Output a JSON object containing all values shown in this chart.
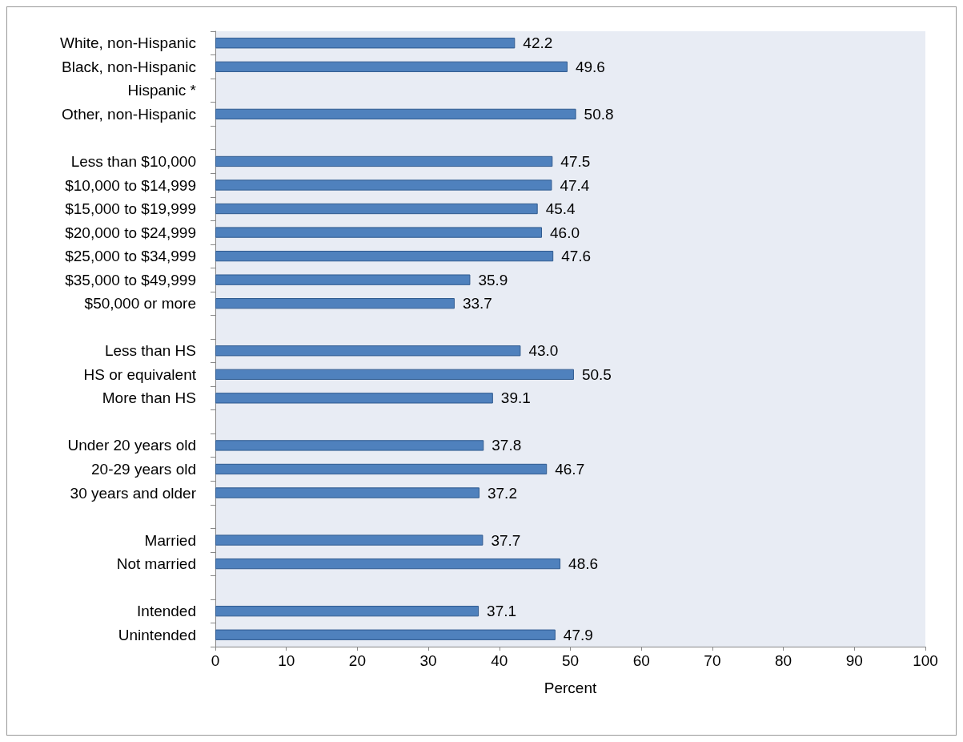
{
  "chart_data": {
    "type": "bar",
    "orientation": "horizontal",
    "xlabel": "Percent",
    "categories": [
      "White, non-Hispanic",
      "Black, non-Hispanic",
      "Hispanic *",
      "Other, non-Hispanic",
      null,
      "Less than $10,000",
      "$10,000 to $14,999",
      "$15,000 to $19,999",
      "$20,000 to $24,999",
      "$25,000 to $34,999",
      "$35,000 to $49,999",
      "$50,000 or more",
      null,
      "Less than HS",
      "HS or equivalent",
      "More than HS",
      null,
      "Under 20 years old",
      "20-29 years old",
      "30 years and older",
      null,
      "Married",
      "Not married",
      null,
      "Intended",
      "Unintended"
    ],
    "values": [
      42.2,
      49.6,
      null,
      50.8,
      null,
      47.5,
      47.4,
      45.4,
      46.0,
      47.6,
      35.9,
      33.7,
      null,
      43.0,
      50.5,
      39.1,
      null,
      37.8,
      46.7,
      37.2,
      null,
      37.7,
      48.6,
      null,
      37.1,
      47.9
    ],
    "value_labels": [
      "42.2",
      "49.6",
      null,
      "50.8",
      null,
      "47.5",
      "47.4",
      "45.4",
      "46.0",
      "47.6",
      "35.9",
      "33.7",
      null,
      "43.0",
      "50.5",
      "39.1",
      null,
      "37.8",
      "46.7",
      "37.2",
      null,
      "37.7",
      "48.6",
      null,
      "37.1",
      "47.9"
    ],
    "color": "#4f81bd",
    "xlim": [
      0,
      100
    ],
    "xticks": [
      0,
      10,
      20,
      30,
      40,
      50,
      60,
      70,
      80,
      90,
      100
    ],
    "grid": false
  }
}
